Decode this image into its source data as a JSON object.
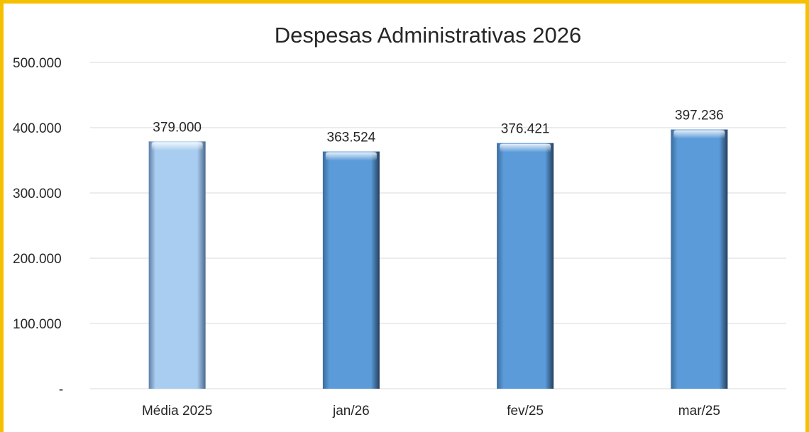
{
  "chart_data": {
    "type": "bar",
    "title": "Despesas Administrativas 2026",
    "xlabel": "",
    "ylabel": "",
    "categories": [
      "Média 2025",
      "jan/26",
      "fev/25",
      "mar/25"
    ],
    "values": [
      379000,
      363524,
      376421,
      397236
    ],
    "data_labels": [
      "379.000",
      "363.524",
      "376.421",
      "397.236"
    ],
    "ylim": [
      0,
      500000
    ],
    "yticks": [
      0,
      100000,
      200000,
      300000,
      400000,
      500000
    ],
    "ytick_labels": [
      "-",
      "100.000",
      "200.000",
      "300.000",
      "400.000",
      "500.000"
    ],
    "grid": true,
    "legend": "none",
    "colors": {
      "first_bar": "#a9cdf0",
      "bars": "#5b9bd9",
      "bar_edge": "#2e5f8f",
      "frame": "#f5c000",
      "gridline": "#d9d9d9",
      "text": "#262626"
    }
  }
}
